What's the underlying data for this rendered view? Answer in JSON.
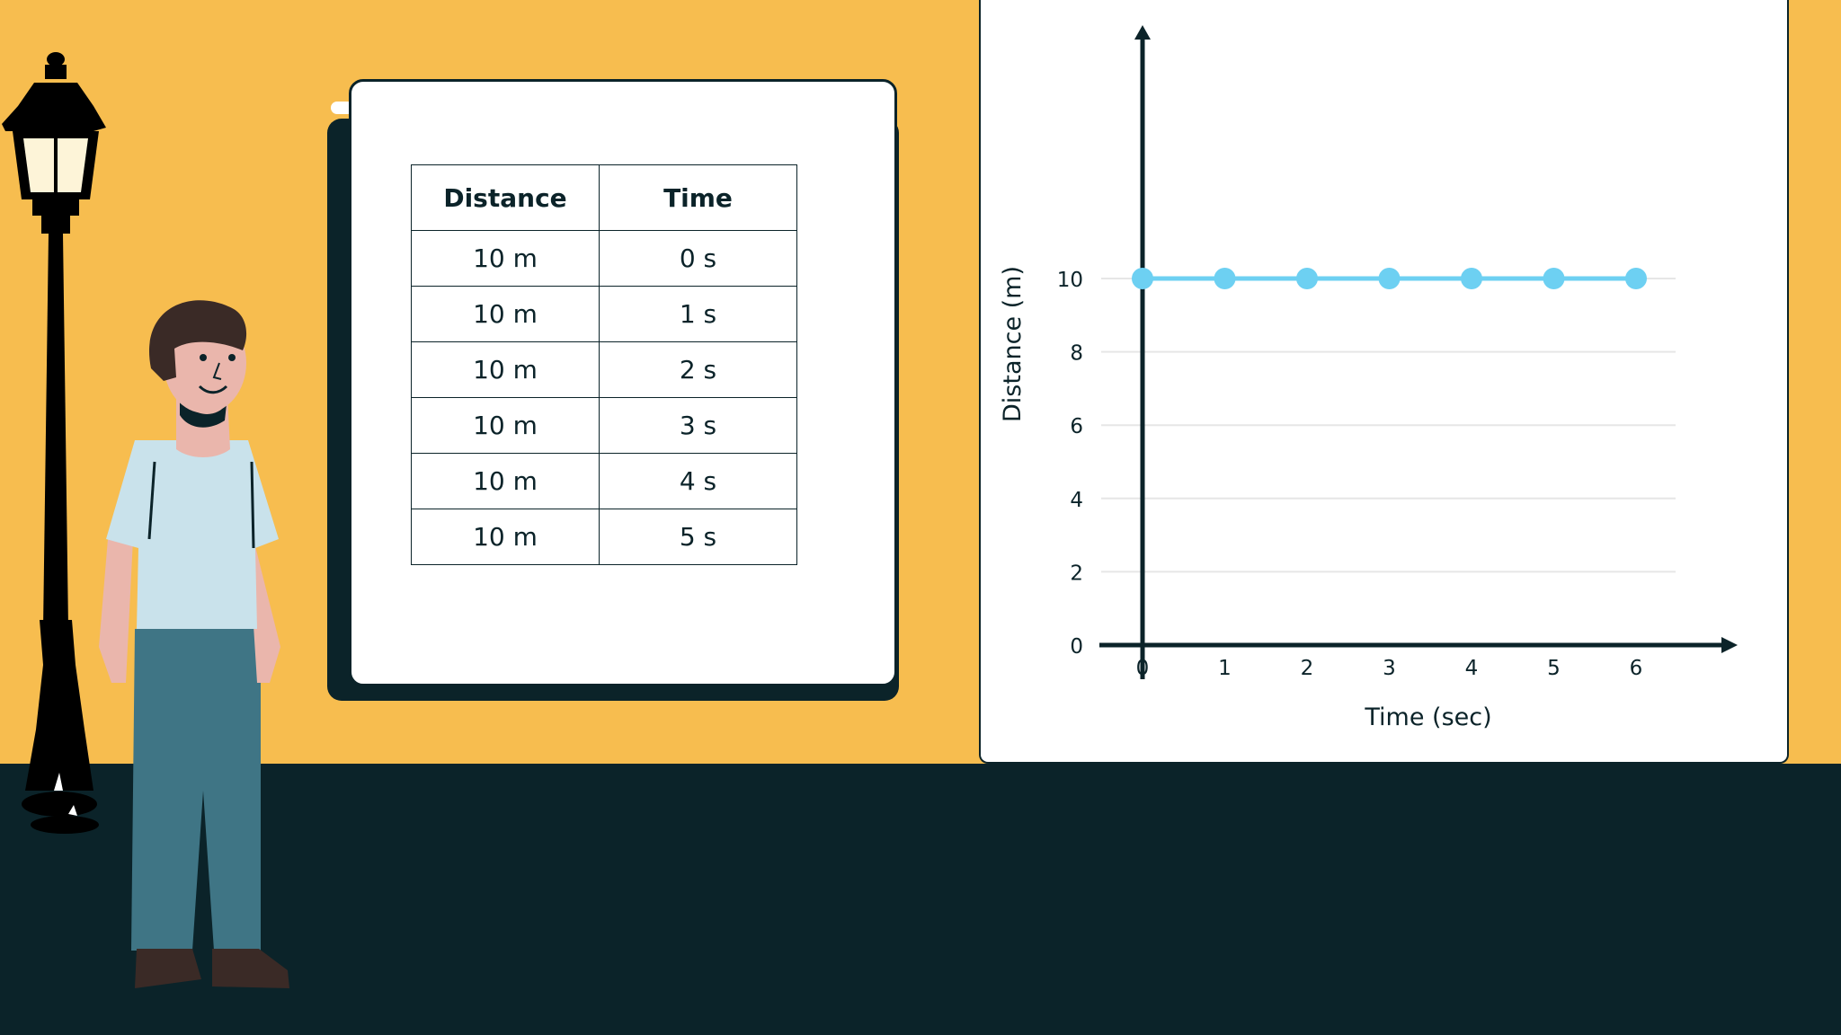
{
  "table": {
    "headers": [
      "Distance",
      "Time"
    ],
    "rows": [
      [
        "10 m",
        "0 s"
      ],
      [
        "10 m",
        "1 s"
      ],
      [
        "10 m",
        "2 s"
      ],
      [
        "10 m",
        "3 s"
      ],
      [
        "10 m",
        "4 s"
      ],
      [
        "10 m",
        "5 s"
      ]
    ]
  },
  "chart_data": {
    "type": "line",
    "xlabel": "Time (sec)",
    "ylabel": "Distance (m)",
    "x": [
      0,
      1,
      2,
      3,
      4,
      5,
      6
    ],
    "series": [
      {
        "values": [
          10,
          10,
          10,
          10,
          10,
          10,
          10
        ],
        "color": "#6dd0f2"
      }
    ],
    "xticks": [
      "0",
      "1",
      "2",
      "3",
      "4",
      "5",
      "6"
    ],
    "yticks": [
      "0",
      "2",
      "4",
      "6",
      "8",
      "10"
    ],
    "xlim": [
      0,
      6
    ],
    "ylim": [
      0,
      10
    ],
    "grid": true,
    "axis_color": "#0b2329",
    "grid_color": "#e6e6e6"
  },
  "colors": {
    "wall": "#f7bd4f",
    "ground": "#0b2329",
    "accent": "#6dd0f2"
  }
}
